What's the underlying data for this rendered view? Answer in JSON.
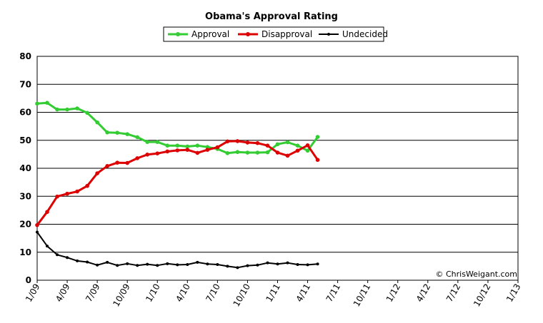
{
  "chart_data": {
    "type": "line",
    "title": "Obama's Approval Rating",
    "ylim": [
      0,
      80
    ],
    "y_ticks": [
      0,
      10,
      20,
      30,
      40,
      50,
      60,
      70,
      80
    ],
    "x_range": [
      "2009-01",
      "2013-01"
    ],
    "x_ticks": [
      "1/09",
      "4/09",
      "7/09",
      "10/09",
      "1/10",
      "4/10",
      "7/10",
      "10/10",
      "1/11",
      "4/11",
      "7/11",
      "10/11",
      "1/12",
      "4/12",
      "7/12",
      "10/12",
      "1/13"
    ],
    "grid": true,
    "legend_position": "top-center",
    "credit": "© ChrisWeigant.com",
    "x": [
      "2009-01",
      "2009-02",
      "2009-03",
      "2009-04",
      "2009-05",
      "2009-06",
      "2009-07",
      "2009-08",
      "2009-09",
      "2009-10",
      "2009-11",
      "2009-12",
      "2010-01",
      "2010-02",
      "2010-03",
      "2010-04",
      "2010-05",
      "2010-06",
      "2010-07",
      "2010-08",
      "2010-09",
      "2010-10",
      "2010-11",
      "2010-12",
      "2011-01",
      "2011-02",
      "2011-03",
      "2011-04",
      "2011-05"
    ],
    "series": [
      {
        "name": "Approval",
        "color": "#33cc33",
        "values": [
          63.1,
          63.4,
          61.0,
          61.0,
          61.4,
          59.8,
          56.4,
          52.8,
          52.7,
          52.2,
          51.1,
          49.4,
          49.4,
          48.1,
          48.1,
          47.8,
          48.1,
          47.6,
          46.9,
          45.4,
          45.8,
          45.6,
          45.6,
          45.7,
          48.6,
          49.3,
          48.1,
          46.3,
          51.2
        ]
      },
      {
        "name": "Disapproval",
        "color": "#dd0000",
        "values": [
          19.7,
          24.4,
          29.9,
          30.9,
          31.7,
          33.7,
          38.2,
          40.8,
          42.0,
          41.9,
          43.6,
          44.9,
          45.3,
          46.0,
          46.4,
          46.6,
          45.5,
          46.6,
          47.5,
          49.6,
          49.7,
          49.2,
          49.0,
          48.1,
          45.6,
          44.5,
          46.3,
          48.2,
          43.0
        ]
      },
      {
        "name": "Undecided",
        "color": "#000000",
        "values": [
          17.2,
          12.2,
          9.1,
          8.1,
          6.9,
          6.5,
          5.4,
          6.4,
          5.3,
          5.9,
          5.3,
          5.7,
          5.3,
          5.9,
          5.5,
          5.6,
          6.4,
          5.8,
          5.6,
          5.0,
          4.5,
          5.2,
          5.4,
          6.2,
          5.8,
          6.2,
          5.6,
          5.5,
          5.8
        ]
      }
    ]
  }
}
